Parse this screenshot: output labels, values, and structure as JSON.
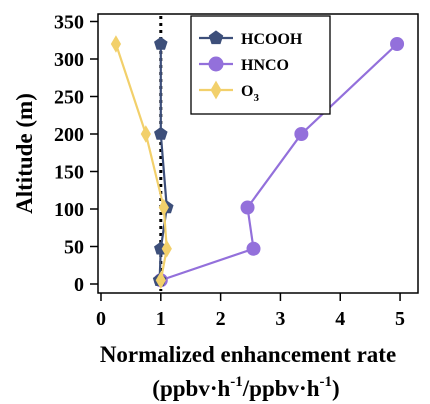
{
  "chart_data": {
    "type": "line",
    "ylabel": "Altitude (m)",
    "xlabel": "Normalized enhancement rate",
    "xlabel_units": {
      "open": "(ppbv·h",
      "sup1": "-1",
      "mid": "/ppbv·h",
      "sup2": "-1",
      "close": ")"
    },
    "xlim": [
      -0.05,
      5.3
    ],
    "ylim": [
      -12,
      360
    ],
    "xticks": [
      0,
      1,
      2,
      3,
      4,
      5
    ],
    "yticks": [
      0,
      50,
      100,
      150,
      200,
      250,
      300,
      350
    ],
    "reference_line": {
      "x": 1,
      "style": "dotted",
      "color": "#000000"
    },
    "legend_position": "top-right",
    "series": [
      {
        "name": "HCOOH",
        "label_parts": {
          "main": "HCOOH",
          "sub": ""
        },
        "color": "#3d4f7a",
        "marker": "pentagon",
        "points": [
          {
            "x": 0.98,
            "y": 5
          },
          {
            "x": 1.0,
            "y": 47
          },
          {
            "x": 1.1,
            "y": 102
          },
          {
            "x": 1.0,
            "y": 200
          },
          {
            "x": 1.0,
            "y": 320
          }
        ]
      },
      {
        "name": "HNCO",
        "label_parts": {
          "main": "HNCO",
          "sub": ""
        },
        "color": "#9370db",
        "marker": "circle",
        "points": [
          {
            "x": 1.0,
            "y": 5
          },
          {
            "x": 2.55,
            "y": 47
          },
          {
            "x": 2.45,
            "y": 102
          },
          {
            "x": 3.35,
            "y": 200
          },
          {
            "x": 4.95,
            "y": 320
          }
        ]
      },
      {
        "name": "O3",
        "label_parts": {
          "main": "O",
          "sub": "3"
        },
        "color": "#f2d06b",
        "marker": "diamond",
        "points": [
          {
            "x": 1.0,
            "y": 5
          },
          {
            "x": 1.1,
            "y": 47
          },
          {
            "x": 1.05,
            "y": 102
          },
          {
            "x": 0.75,
            "y": 200
          },
          {
            "x": 0.25,
            "y": 320
          }
        ]
      }
    ]
  }
}
